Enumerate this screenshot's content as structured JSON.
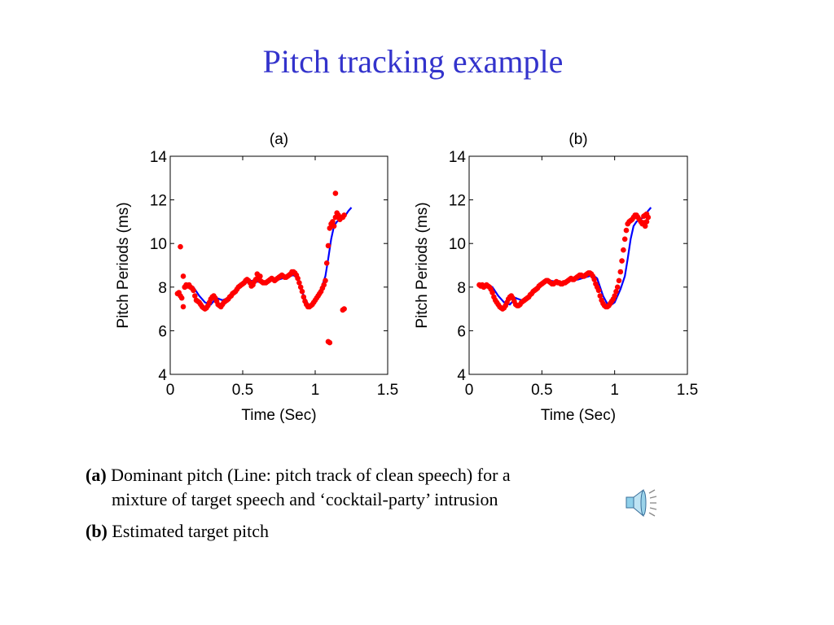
{
  "slide": {
    "title": "Pitch tracking example",
    "caption_a_tag": "(a)",
    "caption_a_line1": "Dominant pitch (Line: pitch track of clean speech) for a",
    "caption_a_line2": "mixture of target speech and ‘cocktail-party’ intrusion",
    "caption_b_tag": "(b)",
    "caption_b_text": "Estimated target pitch",
    "speaker_icon": "speaker-icon",
    "colors": {
      "title": "#3333cc",
      "clean_line": "#0000ff",
      "estimate_dots": "#ff0000"
    }
  },
  "chart_data": [
    {
      "type": "scatter",
      "title": "(a)",
      "xlabel": "Time (Sec)",
      "ylabel": "Pitch Periods (ms)",
      "xlim": [
        0,
        1.5
      ],
      "ylim": [
        4,
        14
      ],
      "xticks": [
        0,
        0.5,
        1,
        1.5
      ],
      "yticks": [
        4,
        6,
        8,
        10,
        12,
        14
      ],
      "xtick_labels": [
        "0",
        "0.5",
        "1",
        "1.5"
      ],
      "ytick_labels": [
        "4",
        "6",
        "8",
        "10",
        "12",
        "14"
      ],
      "grid": false,
      "series": [
        {
          "style": "line",
          "color": "#0000ff",
          "x": [
            0.1,
            0.13,
            0.16,
            0.2,
            0.24,
            0.28,
            0.32,
            0.36,
            0.4,
            0.45,
            0.5,
            0.55,
            0.6,
            0.65,
            0.7,
            0.75,
            0.8,
            0.85,
            0.88,
            0.92,
            0.96,
            1.0,
            1.04,
            1.07,
            1.09,
            1.11,
            1.13,
            1.15,
            1.17,
            1.2,
            1.23,
            1.25
          ],
          "y": [
            7.9,
            8.1,
            8.0,
            7.6,
            7.3,
            7.2,
            7.5,
            7.4,
            7.5,
            7.8,
            8.1,
            8.3,
            8.25,
            8.2,
            8.3,
            8.35,
            8.45,
            8.55,
            8.4,
            7.6,
            7.1,
            7.3,
            7.9,
            8.5,
            9.3,
            10.2,
            10.8,
            11.0,
            11.1,
            11.2,
            11.5,
            11.65
          ]
        },
        {
          "style": "dots",
          "color": "#ff0000",
          "x": [
            0.05,
            0.06,
            0.07,
            0.08,
            0.09,
            0.1,
            0.11,
            0.12,
            0.13,
            0.14,
            0.15,
            0.16,
            0.17,
            0.18,
            0.19,
            0.2,
            0.21,
            0.22,
            0.23,
            0.24,
            0.25,
            0.26,
            0.27,
            0.28,
            0.29,
            0.3,
            0.31,
            0.32,
            0.33,
            0.34,
            0.35,
            0.36,
            0.37,
            0.38,
            0.39,
            0.4,
            0.41,
            0.42,
            0.43,
            0.44,
            0.45,
            0.46,
            0.47,
            0.48,
            0.49,
            0.5,
            0.51,
            0.52,
            0.53,
            0.54,
            0.55,
            0.56,
            0.57,
            0.58,
            0.59,
            0.6,
            0.61,
            0.62,
            0.63,
            0.64,
            0.65,
            0.66,
            0.67,
            0.68,
            0.69,
            0.7,
            0.71,
            0.72,
            0.73,
            0.74,
            0.75,
            0.76,
            0.77,
            0.78,
            0.79,
            0.8,
            0.81,
            0.82,
            0.83,
            0.84,
            0.85,
            0.86,
            0.87,
            0.88,
            0.89,
            0.9,
            0.91,
            0.92,
            0.93,
            0.94,
            0.95,
            0.96,
            0.97,
            0.98,
            0.99,
            1.0,
            1.01,
            1.02,
            1.03,
            1.04,
            1.05,
            1.06,
            1.07,
            1.08,
            1.09,
            1.1,
            1.11,
            1.12,
            1.13,
            1.14,
            1.15,
            1.16,
            1.17,
            1.18,
            1.19,
            1.2,
            0.07,
            0.09,
            0.1,
            0.56,
            0.6,
            0.62,
            1.09,
            1.1,
            1.14,
            1.19,
            1.2,
            0.84
          ],
          "y": [
            7.7,
            7.75,
            7.6,
            7.5,
            7.1,
            8.0,
            8.1,
            8.05,
            8.1,
            8.0,
            7.95,
            7.85,
            7.6,
            7.4,
            7.35,
            7.3,
            7.2,
            7.1,
            7.05,
            7.0,
            7.05,
            7.15,
            7.3,
            7.45,
            7.55,
            7.6,
            7.5,
            7.35,
            7.2,
            7.15,
            7.1,
            7.2,
            7.3,
            7.35,
            7.4,
            7.45,
            7.55,
            7.6,
            7.7,
            7.75,
            7.8,
            7.9,
            8.0,
            8.05,
            8.1,
            8.15,
            8.2,
            8.3,
            8.35,
            8.3,
            8.2,
            8.15,
            8.1,
            8.25,
            8.35,
            8.4,
            8.35,
            8.3,
            8.25,
            8.2,
            8.2,
            8.2,
            8.25,
            8.3,
            8.35,
            8.4,
            8.35,
            8.3,
            8.35,
            8.4,
            8.45,
            8.5,
            8.55,
            8.5,
            8.45,
            8.45,
            8.5,
            8.55,
            8.6,
            8.65,
            8.7,
            8.65,
            8.55,
            8.4,
            8.2,
            8.0,
            7.8,
            7.55,
            7.35,
            7.2,
            7.1,
            7.1,
            7.15,
            7.2,
            7.3,
            7.4,
            7.5,
            7.6,
            7.7,
            7.8,
            7.95,
            8.1,
            8.3,
            9.1,
            9.9,
            10.7,
            10.9,
            11.0,
            10.8,
            11.2,
            11.4,
            11.3,
            11.1,
            11.2,
            11.2,
            11.3,
            9.85,
            8.5,
            8.0,
            8.05,
            8.6,
            8.5,
            5.5,
            5.45,
            12.3,
            6.95,
            7.0,
            8.7
          ]
        }
      ]
    },
    {
      "type": "scatter",
      "title": "(b)",
      "xlabel": "Time (Sec)",
      "ylabel": "Pitch Periods (ms)",
      "xlim": [
        0,
        1.5
      ],
      "ylim": [
        4,
        14
      ],
      "xticks": [
        0,
        0.5,
        1,
        1.5
      ],
      "yticks": [
        4,
        6,
        8,
        10,
        12,
        14
      ],
      "xtick_labels": [
        "0",
        "0.5",
        "1",
        "1.5"
      ],
      "ytick_labels": [
        "4",
        "6",
        "8",
        "10",
        "12",
        "14"
      ],
      "grid": false,
      "series": [
        {
          "style": "line",
          "color": "#0000ff",
          "x": [
            0.1,
            0.13,
            0.16,
            0.2,
            0.24,
            0.28,
            0.32,
            0.36,
            0.4,
            0.45,
            0.5,
            0.55,
            0.6,
            0.65,
            0.7,
            0.75,
            0.8,
            0.85,
            0.88,
            0.92,
            0.96,
            1.0,
            1.04,
            1.07,
            1.09,
            1.11,
            1.13,
            1.15,
            1.17,
            1.2,
            1.23,
            1.25
          ],
          "y": [
            7.9,
            8.1,
            8.0,
            7.6,
            7.3,
            7.2,
            7.5,
            7.4,
            7.5,
            7.8,
            8.1,
            8.3,
            8.25,
            8.2,
            8.3,
            8.35,
            8.45,
            8.55,
            8.4,
            7.6,
            7.1,
            7.3,
            7.9,
            8.5,
            9.3,
            10.2,
            10.8,
            11.0,
            11.1,
            11.2,
            11.5,
            11.65
          ]
        },
        {
          "style": "dots",
          "color": "#ff0000",
          "x": [
            0.07,
            0.08,
            0.09,
            0.1,
            0.11,
            0.12,
            0.13,
            0.14,
            0.15,
            0.16,
            0.17,
            0.18,
            0.19,
            0.2,
            0.21,
            0.22,
            0.23,
            0.24,
            0.25,
            0.26,
            0.27,
            0.28,
            0.29,
            0.3,
            0.31,
            0.32,
            0.33,
            0.34,
            0.35,
            0.36,
            0.37,
            0.38,
            0.39,
            0.4,
            0.41,
            0.42,
            0.43,
            0.44,
            0.45,
            0.46,
            0.47,
            0.48,
            0.49,
            0.5,
            0.51,
            0.52,
            0.53,
            0.54,
            0.55,
            0.56,
            0.57,
            0.58,
            0.59,
            0.6,
            0.61,
            0.62,
            0.63,
            0.64,
            0.65,
            0.66,
            0.67,
            0.68,
            0.69,
            0.7,
            0.71,
            0.72,
            0.73,
            0.74,
            0.75,
            0.76,
            0.77,
            0.78,
            0.79,
            0.8,
            0.81,
            0.82,
            0.83,
            0.84,
            0.85,
            0.86,
            0.87,
            0.88,
            0.89,
            0.9,
            0.91,
            0.92,
            0.93,
            0.94,
            0.95,
            0.96,
            0.97,
            0.98,
            0.99,
            1.0,
            1.01,
            1.02,
            1.03,
            1.04,
            1.05,
            1.06,
            1.07,
            1.08,
            1.09,
            1.1,
            1.11,
            1.12,
            1.13,
            1.14,
            1.15,
            1.16,
            1.17,
            1.18,
            1.19,
            1.2,
            1.21,
            1.22,
            1.23,
            1.21,
            1.2,
            1.22
          ],
          "y": [
            8.1,
            8.05,
            8.1,
            8.0,
            8.05,
            8.1,
            8.05,
            8.0,
            7.9,
            7.75,
            7.55,
            7.4,
            7.3,
            7.2,
            7.1,
            7.05,
            7.0,
            7.05,
            7.15,
            7.3,
            7.45,
            7.55,
            7.6,
            7.5,
            7.35,
            7.2,
            7.15,
            7.15,
            7.2,
            7.3,
            7.35,
            7.4,
            7.45,
            7.5,
            7.55,
            7.65,
            7.7,
            7.8,
            7.85,
            7.9,
            7.95,
            8.05,
            8.1,
            8.15,
            8.2,
            8.25,
            8.3,
            8.3,
            8.25,
            8.2,
            8.15,
            8.15,
            8.2,
            8.25,
            8.2,
            8.2,
            8.15,
            8.15,
            8.2,
            8.2,
            8.25,
            8.3,
            8.35,
            8.4,
            8.35,
            8.35,
            8.4,
            8.45,
            8.5,
            8.55,
            8.55,
            8.5,
            8.5,
            8.55,
            8.6,
            8.65,
            8.65,
            8.6,
            8.5,
            8.35,
            8.15,
            8.0,
            7.85,
            7.6,
            7.4,
            7.25,
            7.15,
            7.1,
            7.1,
            7.15,
            7.25,
            7.35,
            7.45,
            7.6,
            7.8,
            8.0,
            8.3,
            8.7,
            9.2,
            9.7,
            10.2,
            10.6,
            10.9,
            11.0,
            11.05,
            11.1,
            11.2,
            11.3,
            11.3,
            11.2,
            11.1,
            11.0,
            10.9,
            11.25,
            11.3,
            11.35,
            11.2,
            10.8,
            10.95,
            11.0
          ]
        }
      ]
    }
  ]
}
